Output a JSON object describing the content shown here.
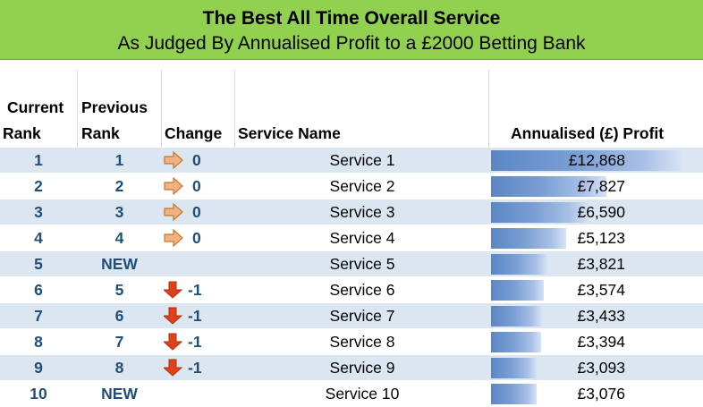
{
  "title": "The Best All Time Overall Service",
  "subtitle": "As Judged By Annualised Profit to a £2000 Betting Bank",
  "headers": {
    "current_rank": [
      "Current",
      "Rank"
    ],
    "previous_rank": [
      "Previous",
      "Rank"
    ],
    "change": "Change",
    "service_name": "Service Name",
    "profit": "Annualised (£) Profit"
  },
  "colors": {
    "banner": "#92d050",
    "band": "#dce6f1",
    "rank_text": "#1f4e79",
    "up_arrow": "#f4b183",
    "down_arrow": "#e0401c"
  },
  "rows": [
    {
      "rank": "1",
      "prev": "1",
      "change_icon": "right-arrow-icon",
      "change": "0",
      "service": "Service 1",
      "profit": "£12,868",
      "profit_value": 12868
    },
    {
      "rank": "2",
      "prev": "2",
      "change_icon": "right-arrow-icon",
      "change": "0",
      "service": "Service 2",
      "profit": "£7,827",
      "profit_value": 7827
    },
    {
      "rank": "3",
      "prev": "3",
      "change_icon": "right-arrow-icon",
      "change": "0",
      "service": "Service 3",
      "profit": "£6,590",
      "profit_value": 6590
    },
    {
      "rank": "4",
      "prev": "4",
      "change_icon": "right-arrow-icon",
      "change": "0",
      "service": "Service 4",
      "profit": "£5,123",
      "profit_value": 5123
    },
    {
      "rank": "5",
      "prev": "NEW",
      "change_icon": "",
      "change": "",
      "service": "Service 5",
      "profit": "£3,821",
      "profit_value": 3821
    },
    {
      "rank": "6",
      "prev": "5",
      "change_icon": "down-arrow-icon",
      "change": "-1",
      "service": "Service 6",
      "profit": "£3,574",
      "profit_value": 3574
    },
    {
      "rank": "7",
      "prev": "6",
      "change_icon": "down-arrow-icon",
      "change": "-1",
      "service": "Service 7",
      "profit": "£3,433",
      "profit_value": 3433
    },
    {
      "rank": "8",
      "prev": "7",
      "change_icon": "down-arrow-icon",
      "change": "-1",
      "service": "Service 8",
      "profit": "£3,394",
      "profit_value": 3394
    },
    {
      "rank": "9",
      "prev": "8",
      "change_icon": "down-arrow-icon",
      "change": "-1",
      "service": "Service 9",
      "profit": "£3,093",
      "profit_value": 3093
    },
    {
      "rank": "10",
      "prev": "NEW",
      "change_icon": "",
      "change": "",
      "service": "Service 10",
      "profit": "£3,076",
      "profit_value": 3076
    }
  ]
}
